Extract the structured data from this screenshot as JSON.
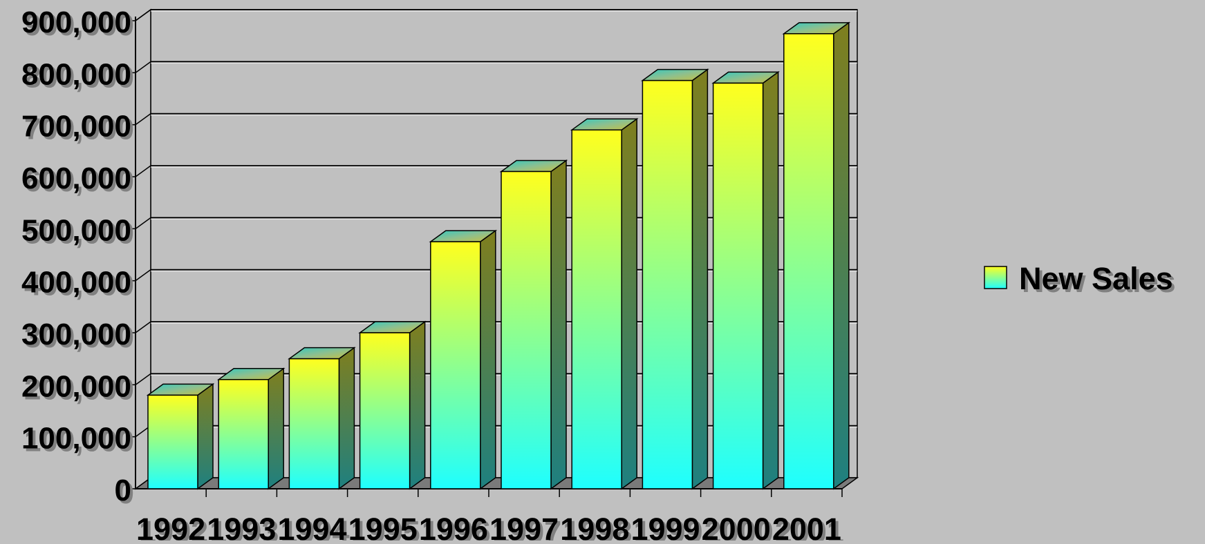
{
  "chart_data": {
    "type": "bar",
    "categories": [
      "1992",
      "1993",
      "1994",
      "1995",
      "1996",
      "1997",
      "1998",
      "1999",
      "2000",
      "2001"
    ],
    "series": [
      {
        "name": "New Sales",
        "values": [
          180000,
          210000,
          250000,
          300000,
          475000,
          610000,
          690000,
          785000,
          780000,
          875000
        ]
      }
    ],
    "ylim": [
      0,
      900000
    ],
    "yticks": [
      0,
      100000,
      200000,
      300000,
      400000,
      500000,
      600000,
      700000,
      800000,
      900000
    ],
    "ytick_labels": [
      "0",
      "100,000",
      "200,000",
      "300,000",
      "400,000",
      "500,000",
      "600,000",
      "700,000",
      "800,000",
      "900,000"
    ],
    "grid": true,
    "legend_position": "right",
    "colors": {
      "background": "#c0c0c0",
      "bar_top": "#ffff1e",
      "bar_bottom": "#1effff",
      "bar_side_top": "#7f7f1e",
      "bar_side_bottom": "#1e8080",
      "gridline": "#000000",
      "floor": "#7a7a7a"
    }
  }
}
